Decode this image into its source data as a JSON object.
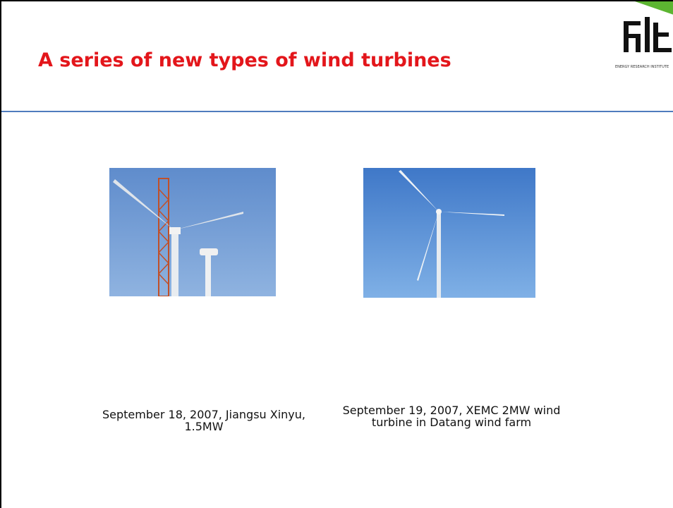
{
  "slide": {
    "title": "A series of new types of wind turbines",
    "logo_text": "ENERGY RESEARCH INSTITUTE",
    "photos": [
      {
        "caption": "September 18, 2007, Jiangsu Xinyu, 1.5MW"
      },
      {
        "caption": "September 19, 2007, XEMC 2MW wind turbine in Datang wind farm"
      }
    ]
  }
}
